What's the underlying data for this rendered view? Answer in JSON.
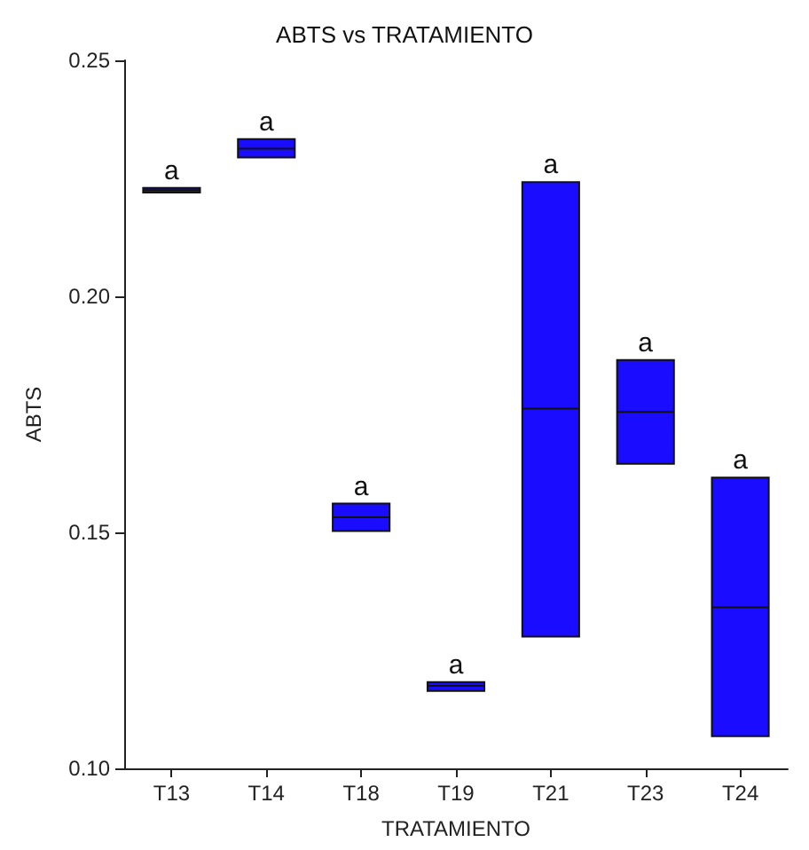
{
  "chart_data": {
    "type": "box",
    "title": "ABTS vs TRATAMIENTO",
    "xlabel": "TRATAMIENTO",
    "ylabel": "ABTS",
    "categories": [
      "T13",
      "T14",
      "T18",
      "T19",
      "T21",
      "T23",
      "T24"
    ],
    "color": "#1a0dff",
    "boxes": [
      {
        "low": 0.222,
        "q1": 0.222,
        "median": 0.2225,
        "q3": 0.223,
        "high": 0.223
      },
      {
        "low": 0.2294,
        "q1": 0.2294,
        "median": 0.2313,
        "q3": 0.2333,
        "high": 0.2333
      },
      {
        "low": 0.1503,
        "q1": 0.1503,
        "median": 0.1532,
        "q3": 0.1561,
        "high": 0.1561
      },
      {
        "low": 0.1164,
        "q1": 0.1164,
        "median": 0.1175,
        "q3": 0.1183,
        "high": 0.1183
      },
      {
        "low": 0.1279,
        "q1": 0.1279,
        "median": 0.1762,
        "q3": 0.2242,
        "high": 0.2242
      },
      {
        "low": 0.1645,
        "q1": 0.1645,
        "median": 0.1755,
        "q3": 0.1865,
        "high": 0.1865
      },
      {
        "low": 0.1068,
        "q1": 0.1068,
        "median": 0.1341,
        "q3": 0.1616,
        "high": 0.1616
      }
    ],
    "ylim": [
      0.1,
      0.25
    ],
    "yticks": [
      {
        "value": 0.1,
        "label": "0.10"
      },
      {
        "value": 0.15,
        "label": "0.15"
      },
      {
        "value": 0.2,
        "label": "0.20"
      },
      {
        "value": 0.25,
        "label": "0.25"
      }
    ],
    "grid": false,
    "annotations": [
      {
        "text": "a",
        "x": "T13",
        "y": 0.223
      },
      {
        "text": "a",
        "x": "T14",
        "y": 0.2333
      },
      {
        "text": "a",
        "x": "T18",
        "y": 0.1561
      },
      {
        "text": "a",
        "x": "T19",
        "y": 0.1183
      },
      {
        "text": "a",
        "x": "T21",
        "y": 0.2242
      },
      {
        "text": "a",
        "x": "T23",
        "y": 0.1865
      },
      {
        "text": "a",
        "x": "T24",
        "y": 0.1616
      }
    ]
  }
}
